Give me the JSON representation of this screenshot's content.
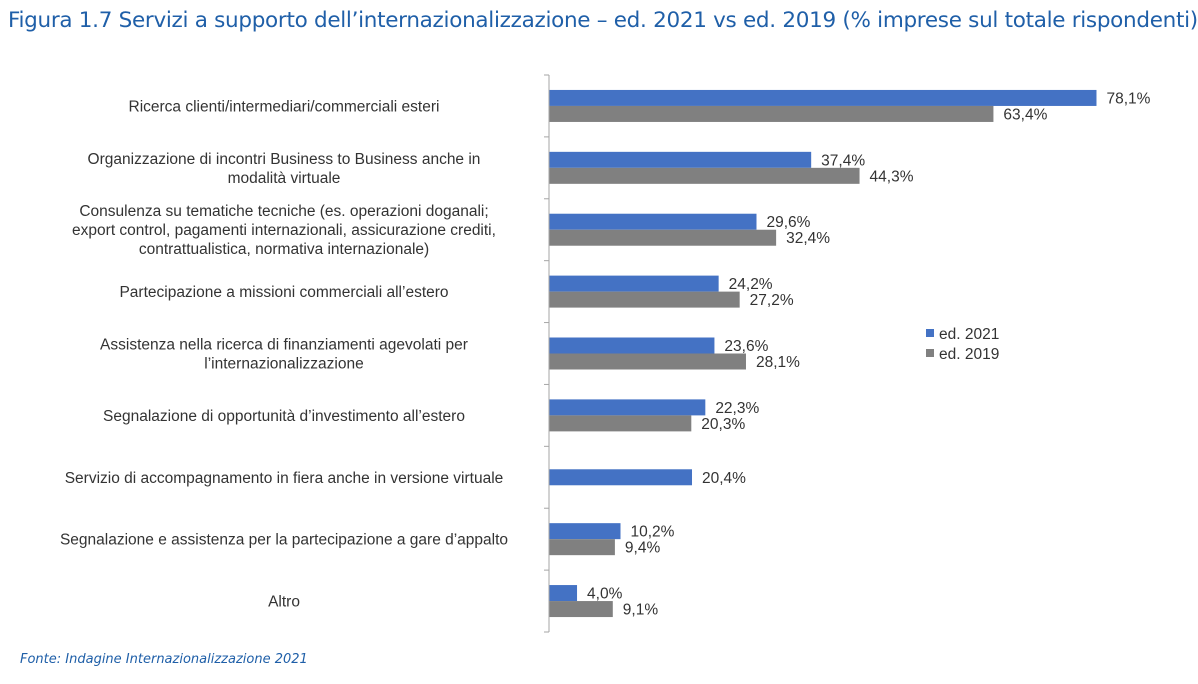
{
  "title": "Figura 1.7 Servizi a supporto dell’internazionalizzazione – ed. 2021 vs ed. 2019 (% imprese sul totale rispondenti)",
  "source": "Fonte: Indagine Internazionalizzazione 2021",
  "colors": {
    "ed2021": "#4472c4",
    "ed2019": "#808080",
    "axis": "#a6a6a6",
    "title": "#1f5fa8"
  },
  "chart_data": {
    "type": "bar",
    "orientation": "horizontal",
    "categories": [
      [
        "Ricerca clienti/intermediari/commerciali esteri"
      ],
      [
        "Organizzazione di incontri Business to Business anche in",
        "modalità virtuale"
      ],
      [
        "Consulenza su tematiche tecniche (es. operazioni doganali;",
        "export control, pagamenti internazionali, assicurazione crediti,",
        "contrattualistica, normativa internazionale)"
      ],
      [
        "Partecipazione a missioni commerciali all’estero"
      ],
      [
        "Assistenza nella ricerca di finanziamenti agevolati per",
        "l’internazionalizzazione"
      ],
      [
        "Segnalazione di opportunità d’investimento all’estero"
      ],
      [
        "Servizio di accompagnamento in fiera anche in versione virtuale"
      ],
      [
        "Segnalazione e assistenza per la partecipazione a gare d’appalto"
      ],
      [
        "Altro"
      ]
    ],
    "series": [
      {
        "name": "ed. 2021",
        "values": [
          78.1,
          37.4,
          29.6,
          24.2,
          23.6,
          22.3,
          20.4,
          10.2,
          4.0
        ],
        "labels": [
          "78,1%",
          "37,4%",
          "29,6%",
          "24,2%",
          "23,6%",
          "22,3%",
          "20,4%",
          "10,2%",
          "4,0%"
        ]
      },
      {
        "name": "ed. 2019",
        "values": [
          63.4,
          44.3,
          32.4,
          27.2,
          28.1,
          20.3,
          null,
          9.4,
          9.1
        ],
        "labels": [
          "63,4%",
          "44,3%",
          "32,4%",
          "27,2%",
          "28,1%",
          "20,3%",
          "",
          "9,4%",
          "9,1%"
        ]
      }
    ],
    "xlim": [
      0,
      100
    ],
    "grid": false,
    "legend_position": "right"
  }
}
